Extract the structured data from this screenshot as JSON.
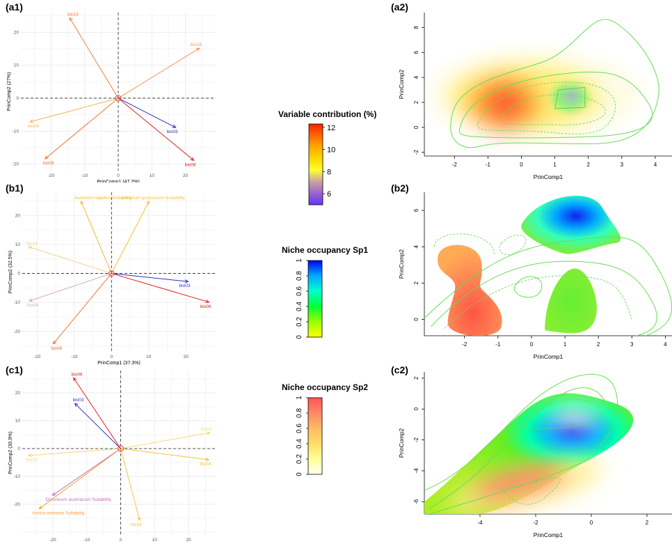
{
  "panel_labels": [
    "(a1)",
    "(a2)",
    "(b1)",
    "(b2)",
    "(c1)",
    "(c2)"
  ],
  "legends": [
    {
      "title": "Variable contribution (%)",
      "ticks": [
        "12",
        "10",
        "8",
        "6"
      ],
      "tick_values": [
        12,
        10,
        8,
        6
      ],
      "range": [
        5,
        12.3
      ],
      "colors": [
        "#ff2200",
        "#ff6600",
        "#ffaa00",
        "#ffd700",
        "#ffff33",
        "#c9a0a0",
        "#9966cc",
        "#6633ff"
      ]
    },
    {
      "title": "Niche occupancy Sp1",
      "ticks": [
        "1",
        "0.8",
        "0.6",
        "0.4",
        "0.2",
        "0"
      ],
      "tick_values": [
        1,
        0.8,
        0.6,
        0.4,
        0.2,
        0
      ],
      "range": [
        0,
        1
      ],
      "colors": [
        "#0000ff",
        "#00aaff",
        "#00ffcc",
        "#00ff33",
        "#99ff00",
        "#ffff00"
      ]
    },
    {
      "title": "Niche occupancy Sp2",
      "ticks": [
        "1",
        "0.8",
        "0.6",
        "0.4",
        "0.2",
        "0"
      ],
      "tick_values": [
        1,
        0.8,
        0.6,
        0.4,
        0.2,
        0
      ],
      "range": [
        0,
        1
      ],
      "colors": [
        "#ff5555",
        "#ff8866",
        "#ffbb66",
        "#ffdd66",
        "#ffff99",
        "#ffffee"
      ]
    }
  ],
  "chart_data": [
    {
      "type": "scatter",
      "id": "a1",
      "xlabel": "PrinComp1 (47.2%)",
      "ylabel": "PrinComp2 (27%)",
      "xlim": [
        -29,
        29
      ],
      "ylim": [
        -22,
        26
      ],
      "xticks": [
        -20,
        -10,
        0,
        10,
        20
      ],
      "yticks": [
        -20,
        -10,
        0,
        10,
        20
      ],
      "vectors": [
        {
          "label": "bio18",
          "x": -14.5,
          "y": 24.4,
          "color": "#f08040"
        },
        {
          "label": "bio19",
          "x": 24.2,
          "y": 15.2,
          "color": "#f59560"
        },
        {
          "label": "bio04",
          "x": -26.3,
          "y": -7.2,
          "color": "#f5b050"
        },
        {
          "label": "bio08",
          "x": -21.8,
          "y": -18.4,
          "color": "#f07030"
        },
        {
          "label": "bio03",
          "x": 17.1,
          "y": -8.9,
          "color": "#3030c0"
        },
        {
          "label": "bio06",
          "x": 22.5,
          "y": -18.9,
          "color": "#dd2020"
        }
      ]
    },
    {
      "type": "scatter",
      "id": "b1",
      "xlabel": "PrinComp1 (37.3%)",
      "ylabel": "PrinComp2 (32.5%)",
      "xlim": [
        -24,
        28
      ],
      "ylim": [
        -27,
        28
      ],
      "xticks": [
        -20,
        -10,
        0,
        10,
        20
      ],
      "yticks": [
        -20,
        -10,
        0,
        10,
        20
      ],
      "vectors": [
        {
          "label": "Aconitum napellus Suitability",
          "x": -8.2,
          "y": 24.9,
          "color": "#f2b830"
        },
        {
          "label": "Aconitum lycoctonum Suitability",
          "x": 10.1,
          "y": 24.9,
          "color": "#f5c030"
        },
        {
          "label": "bio19",
          "x": -22.3,
          "y": 9.2,
          "color": "#f5d090"
        },
        {
          "label": "bio04",
          "x": -22.1,
          "y": -9.5,
          "color": "#d8a8a8"
        },
        {
          "label": "bio08",
          "x": -15.7,
          "y": -24.3,
          "color": "#f07030"
        },
        {
          "label": "bio03",
          "x": 20.6,
          "y": -2.8,
          "color": "#3030c0"
        },
        {
          "label": "bio06",
          "x": 26.2,
          "y": -9.9,
          "color": "#dd2020"
        }
      ]
    },
    {
      "type": "scatter",
      "id": "c1",
      "xlabel": "PrinComp1 (37.7%)",
      "ylabel": "PrinComp2 (30.9%)",
      "xlim": [
        -29,
        28
      ],
      "ylim": [
        -31,
        28
      ],
      "xticks": [
        -20,
        -10,
        0,
        10,
        20
      ],
      "yticks": [
        -20,
        -10,
        0,
        10,
        20
      ],
      "vectors": [
        {
          "label": "bio06",
          "x": -13.9,
          "y": 25.4,
          "color": "#dd2020"
        },
        {
          "label": "bio03",
          "x": -13.5,
          "y": 16.2,
          "color": "#3030c0"
        },
        {
          "label": "bio08",
          "x": 26.3,
          "y": 5.7,
          "color": "#f5e070"
        },
        {
          "label": "bio04",
          "x": 26.0,
          "y": -4.0,
          "color": "#f2c030"
        },
        {
          "label": "bio19",
          "x": -27.2,
          "y": -2.5,
          "color": "#f5d080"
        },
        {
          "label": "Doronicum austriacum Suitability",
          "x": -20.1,
          "y": -16.8,
          "color": "#c070c0"
        },
        {
          "label": "Arnica montana Suitability",
          "x": -24.0,
          "y": -21.6,
          "color": "#f2a030"
        },
        {
          "label": "bio18",
          "x": 5.6,
          "y": -25.8,
          "color": "#f5c840"
        }
      ]
    },
    {
      "type": "heatmap",
      "id": "a2",
      "xlabel": "PrinComp1",
      "ylabel": "PrinComp2",
      "xlim": [
        -2.9,
        4.5
      ],
      "ylim": [
        -2.3,
        9.2
      ],
      "xticks": [
        -2,
        -1,
        0,
        1,
        2,
        3,
        4
      ],
      "yticks": [
        -2,
        0,
        2,
        4,
        6,
        8
      ]
    },
    {
      "type": "heatmap",
      "id": "b2",
      "xlabel": "PrinComp1",
      "ylabel": "PrinComp2",
      "xlim": [
        -3.2,
        4.2
      ],
      "ylim": [
        -0.9,
        7.0
      ],
      "xticks": [
        -2,
        -1,
        0,
        1,
        2,
        3,
        4
      ],
      "yticks": [
        0,
        2,
        4,
        6
      ]
    },
    {
      "type": "heatmap",
      "id": "c2",
      "xlabel": "PrinComp1",
      "ylabel": "PrinComp2",
      "xlim": [
        -6.0,
        2.9
      ],
      "ylim": [
        -6.8,
        2.4
      ],
      "xticks": [
        -4,
        -2,
        0,
        2
      ],
      "yticks": [
        -6,
        -4,
        -2,
        0,
        2
      ]
    }
  ]
}
